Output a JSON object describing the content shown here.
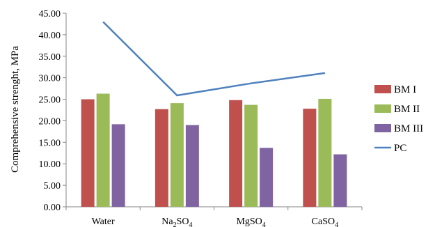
{
  "chart_data": {
    "type": "bar",
    "ylabel": "Comprehensive strenght, MPa",
    "xlabel": "",
    "ylim": [
      0,
      45
    ],
    "y_step": 5,
    "y_ticks": [
      "0.00",
      "5.00",
      "10.00",
      "15.00",
      "20.00",
      "25.00",
      "30.00",
      "35.00",
      "40.00",
      "45.00"
    ],
    "categories": [
      {
        "text": "Water",
        "sub": ""
      },
      {
        "text": "Na",
        "sub": "2",
        "after": "SO",
        "sub2": "4"
      },
      {
        "text": "MgSO",
        "sub": "4"
      },
      {
        "text": "CaSO",
        "sub": "4"
      }
    ],
    "series": [
      {
        "name": "BM I",
        "type": "bar",
        "color": "#c0504d",
        "values": [
          25.0,
          22.7,
          24.8,
          22.8
        ]
      },
      {
        "name": "BM II",
        "type": "bar",
        "color": "#9bbb59",
        "values": [
          26.3,
          24.1,
          23.7,
          25.1
        ]
      },
      {
        "name": "BM III",
        "type": "bar",
        "color": "#8064a2",
        "values": [
          19.2,
          19.0,
          13.7,
          12.2
        ]
      },
      {
        "name": "PC",
        "type": "line",
        "color": "#4f81bd",
        "values": [
          43.0,
          25.9,
          28.7,
          31.1
        ]
      }
    ],
    "grid": false,
    "legend_position": "right"
  }
}
